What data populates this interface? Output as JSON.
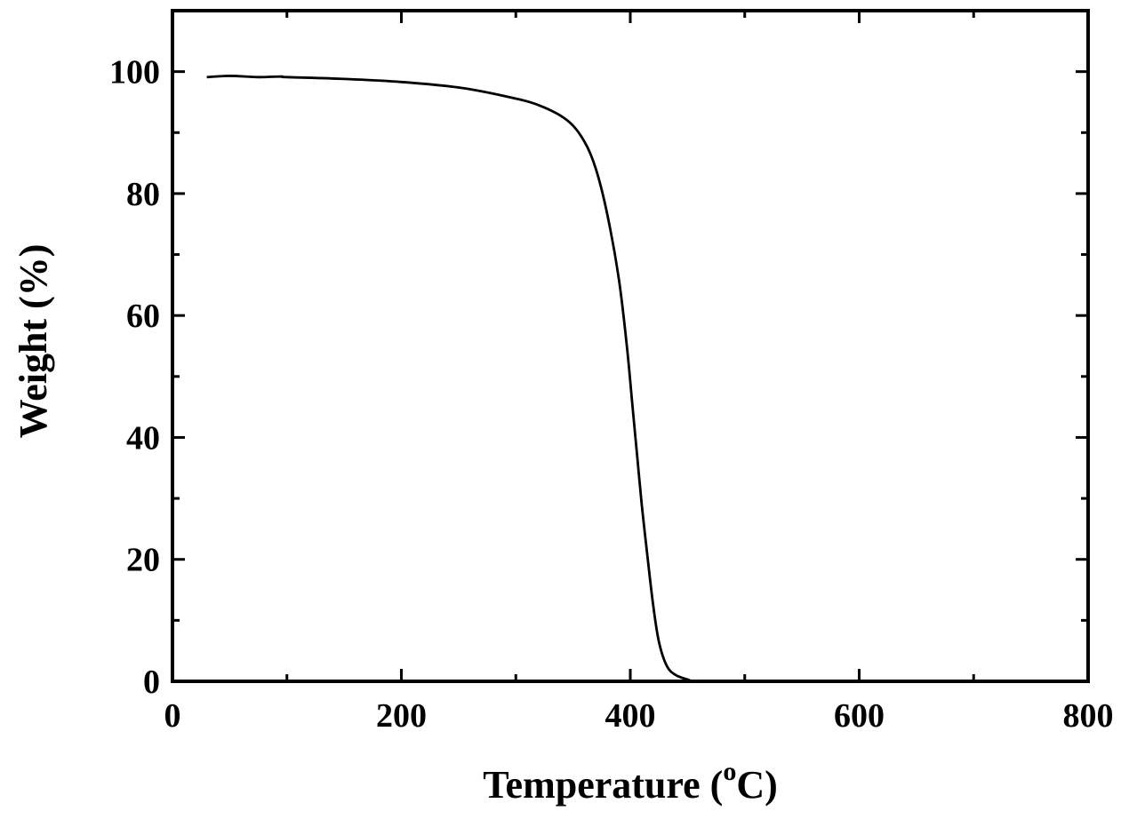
{
  "chart_data": {
    "type": "line",
    "title": "",
    "xlabel_main": "Temperature (",
    "xlabel_sup": "o",
    "xlabel_tail": "C)",
    "ylabel": "Weight (%)",
    "xlim": [
      0,
      800
    ],
    "ylim": [
      0,
      110
    ],
    "x_ticks": [
      0,
      200,
      400,
      600,
      800
    ],
    "x_tick_labels": [
      "0",
      "200",
      "400",
      "600",
      "800"
    ],
    "y_ticks": [
      0,
      20,
      40,
      60,
      80,
      100
    ],
    "y_tick_labels": [
      "0",
      "20",
      "40",
      "60",
      "80",
      "100"
    ],
    "grid": false,
    "legend": "none",
    "series": [
      {
        "color": "#000000",
        "x": [
          30,
          50,
          75,
          95,
          100,
          150,
          200,
          250,
          290,
          320,
          345,
          360,
          370,
          380,
          390,
          397,
          402,
          406,
          410,
          415,
          420,
          425,
          432,
          440,
          450,
          455,
          460
        ],
        "y": [
          99.1,
          99.3,
          99.1,
          99.2,
          99.1,
          98.8,
          98.3,
          97.4,
          96.0,
          94.5,
          92.0,
          88.5,
          84.0,
          76.5,
          66.0,
          55.0,
          45.0,
          37.0,
          29.0,
          20.5,
          12.5,
          6.5,
          2.5,
          1.0,
          0.3,
          0.0,
          0.0
        ]
      }
    ]
  }
}
